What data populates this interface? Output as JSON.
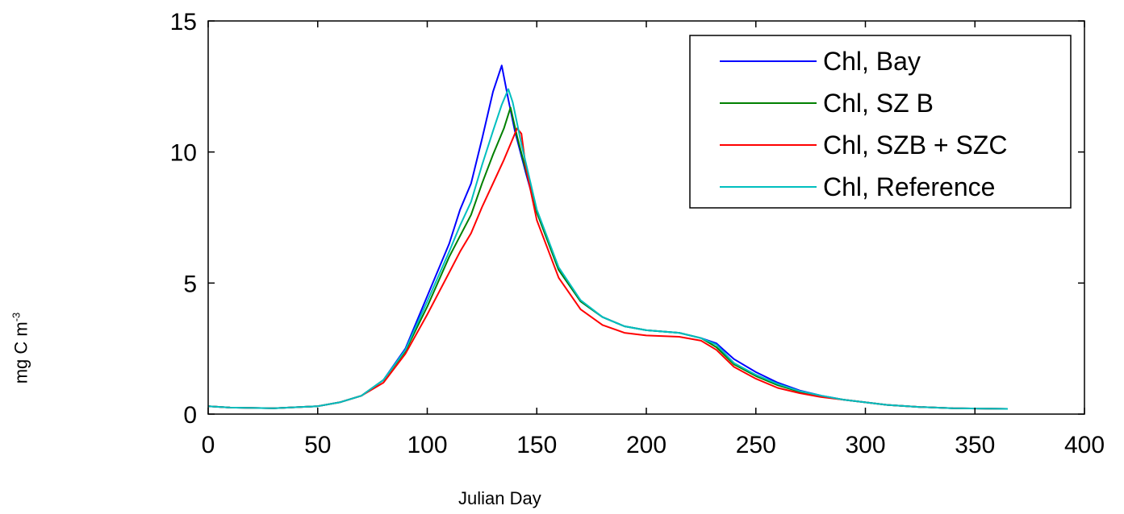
{
  "chart_data": {
    "type": "line",
    "xlabel": "Julian Day",
    "ylabel": {
      "base": "mg C m",
      "exponent": "-3"
    },
    "xlim": [
      0,
      400
    ],
    "ylim": [
      0,
      15
    ],
    "xticks": [
      "0",
      "50",
      "100",
      "150",
      "200",
      "250",
      "300",
      "350",
      "400"
    ],
    "yticks": [
      "0",
      "5",
      "10",
      "15"
    ],
    "grid": false,
    "legend_position": "top-right",
    "series": [
      {
        "name": "Chl, Bay",
        "color": "#0000ff",
        "points": [
          [
            0,
            0.3
          ],
          [
            10,
            0.25
          ],
          [
            30,
            0.22
          ],
          [
            50,
            0.3
          ],
          [
            60,
            0.45
          ],
          [
            70,
            0.7
          ],
          [
            80,
            1.3
          ],
          [
            90,
            2.5
          ],
          [
            100,
            4.5
          ],
          [
            110,
            6.5
          ],
          [
            115,
            7.8
          ],
          [
            120,
            8.8
          ],
          [
            125,
            10.5
          ],
          [
            130,
            12.3
          ],
          [
            134,
            13.3
          ],
          [
            137,
            12.0
          ],
          [
            140,
            10.8
          ],
          [
            145,
            9.2
          ],
          [
            150,
            7.7
          ],
          [
            160,
            5.5
          ],
          [
            170,
            4.3
          ],
          [
            180,
            3.7
          ],
          [
            190,
            3.35
          ],
          [
            200,
            3.2
          ],
          [
            215,
            3.1
          ],
          [
            225,
            2.9
          ],
          [
            232,
            2.7
          ],
          [
            240,
            2.1
          ],
          [
            250,
            1.6
          ],
          [
            260,
            1.2
          ],
          [
            270,
            0.9
          ],
          [
            280,
            0.7
          ],
          [
            290,
            0.55
          ],
          [
            300,
            0.45
          ],
          [
            310,
            0.35
          ],
          [
            325,
            0.27
          ],
          [
            340,
            0.22
          ],
          [
            365,
            0.2
          ]
        ]
      },
      {
        "name": "Chl, SZ B",
        "color": "#008000",
        "points": [
          [
            0,
            0.3
          ],
          [
            10,
            0.25
          ],
          [
            30,
            0.22
          ],
          [
            50,
            0.3
          ],
          [
            60,
            0.45
          ],
          [
            70,
            0.7
          ],
          [
            80,
            1.3
          ],
          [
            90,
            2.4
          ],
          [
            100,
            4.1
          ],
          [
            110,
            6.0
          ],
          [
            115,
            6.8
          ],
          [
            120,
            7.6
          ],
          [
            125,
            8.8
          ],
          [
            130,
            9.9
          ],
          [
            135,
            10.9
          ],
          [
            138,
            11.7
          ],
          [
            141,
            10.6
          ],
          [
            145,
            9.3
          ],
          [
            150,
            7.7
          ],
          [
            160,
            5.5
          ],
          [
            170,
            4.3
          ],
          [
            180,
            3.7
          ],
          [
            190,
            3.35
          ],
          [
            200,
            3.2
          ],
          [
            215,
            3.1
          ],
          [
            225,
            2.9
          ],
          [
            232,
            2.55
          ],
          [
            240,
            1.9
          ],
          [
            250,
            1.45
          ],
          [
            260,
            1.1
          ],
          [
            270,
            0.85
          ],
          [
            280,
            0.68
          ],
          [
            290,
            0.55
          ],
          [
            300,
            0.45
          ],
          [
            310,
            0.35
          ],
          [
            325,
            0.27
          ],
          [
            340,
            0.22
          ],
          [
            365,
            0.2
          ]
        ]
      },
      {
        "name": "Chl, SZB + SZC",
        "color": "#ff0000",
        "points": [
          [
            0,
            0.3
          ],
          [
            10,
            0.25
          ],
          [
            30,
            0.22
          ],
          [
            50,
            0.3
          ],
          [
            60,
            0.45
          ],
          [
            70,
            0.7
          ],
          [
            80,
            1.2
          ],
          [
            90,
            2.3
          ],
          [
            100,
            3.8
          ],
          [
            110,
            5.4
          ],
          [
            115,
            6.2
          ],
          [
            120,
            6.9
          ],
          [
            125,
            7.9
          ],
          [
            130,
            8.8
          ],
          [
            135,
            9.7
          ],
          [
            138,
            10.3
          ],
          [
            141,
            10.9
          ],
          [
            143,
            10.7
          ],
          [
            145,
            9.4
          ],
          [
            150,
            7.4
          ],
          [
            160,
            5.2
          ],
          [
            170,
            4.0
          ],
          [
            180,
            3.4
          ],
          [
            190,
            3.1
          ],
          [
            200,
            3.0
          ],
          [
            215,
            2.95
          ],
          [
            225,
            2.8
          ],
          [
            232,
            2.45
          ],
          [
            240,
            1.8
          ],
          [
            250,
            1.35
          ],
          [
            260,
            1.0
          ],
          [
            270,
            0.8
          ],
          [
            280,
            0.65
          ],
          [
            290,
            0.55
          ],
          [
            300,
            0.45
          ],
          [
            310,
            0.35
          ],
          [
            325,
            0.27
          ],
          [
            340,
            0.22
          ],
          [
            365,
            0.2
          ]
        ]
      },
      {
        "name": "Chl, Reference",
        "color": "#00bfbf",
        "points": [
          [
            0,
            0.3
          ],
          [
            10,
            0.25
          ],
          [
            30,
            0.22
          ],
          [
            50,
            0.3
          ],
          [
            60,
            0.45
          ],
          [
            70,
            0.7
          ],
          [
            80,
            1.3
          ],
          [
            90,
            2.45
          ],
          [
            100,
            4.3
          ],
          [
            110,
            6.2
          ],
          [
            115,
            7.2
          ],
          [
            120,
            8.1
          ],
          [
            125,
            9.5
          ],
          [
            130,
            10.8
          ],
          [
            134,
            11.8
          ],
          [
            137,
            12.4
          ],
          [
            139,
            11.9
          ],
          [
            143,
            10.3
          ],
          [
            150,
            7.8
          ],
          [
            160,
            5.6
          ],
          [
            170,
            4.35
          ],
          [
            180,
            3.7
          ],
          [
            190,
            3.35
          ],
          [
            200,
            3.2
          ],
          [
            215,
            3.1
          ],
          [
            225,
            2.9
          ],
          [
            232,
            2.65
          ],
          [
            240,
            1.95
          ],
          [
            250,
            1.5
          ],
          [
            260,
            1.15
          ],
          [
            270,
            0.88
          ],
          [
            280,
            0.7
          ],
          [
            290,
            0.55
          ],
          [
            300,
            0.45
          ],
          [
            310,
            0.35
          ],
          [
            325,
            0.27
          ],
          [
            340,
            0.22
          ],
          [
            365,
            0.2
          ]
        ]
      }
    ]
  }
}
